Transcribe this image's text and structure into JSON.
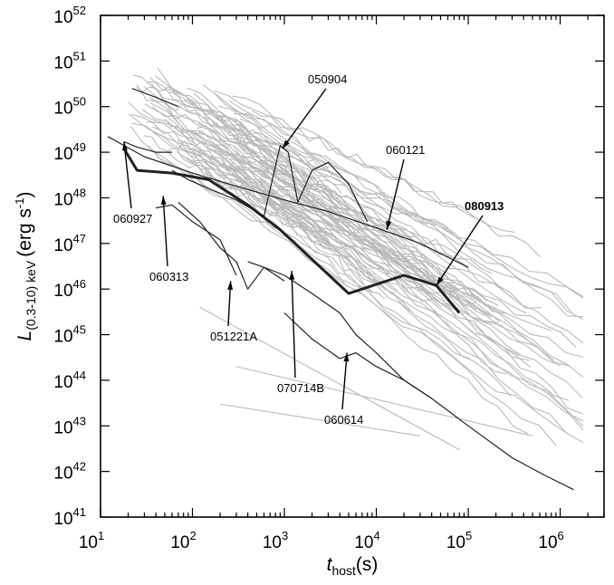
{
  "chart_data": {
    "type": "line",
    "xlabel": {
      "main": "t",
      "sub": "host",
      "unit": "(s)"
    },
    "ylabel": {
      "main": "L",
      "sub": "(0.3-10) keV",
      "unit_pre": "(erg s",
      "unit_exp": "-1",
      "unit_post": ")"
    },
    "xscale": "log",
    "yscale": "log",
    "xlim": [
      10,
      3000000
    ],
    "ylim": [
      1e+41,
      1e+52
    ],
    "x_ticks": [
      {
        "base": "10",
        "exp": "1"
      },
      {
        "base": "10",
        "exp": "2"
      },
      {
        "base": "10",
        "exp": "3"
      },
      {
        "base": "10",
        "exp": "4"
      },
      {
        "base": "10",
        "exp": "5"
      },
      {
        "base": "10",
        "exp": "6"
      }
    ],
    "y_ticks": [
      {
        "base": "10",
        "exp": "41"
      },
      {
        "base": "10",
        "exp": "42"
      },
      {
        "base": "10",
        "exp": "43"
      },
      {
        "base": "10",
        "exp": "44"
      },
      {
        "base": "10",
        "exp": "45"
      },
      {
        "base": "10",
        "exp": "46"
      },
      {
        "base": "10",
        "exp": "47"
      },
      {
        "base": "10",
        "exp": "48"
      },
      {
        "base": "10",
        "exp": "49"
      },
      {
        "base": "10",
        "exp": "50"
      },
      {
        "base": "10",
        "exp": "51"
      },
      {
        "base": "10",
        "exp": "52"
      }
    ],
    "colors": {
      "background_sample": "#bbbbbb",
      "highlight": "#222222",
      "grb_080913": "#222222"
    },
    "highlighted": [
      {
        "name": "080913",
        "bold": true,
        "x": [
          18,
          25,
          60,
          150,
          400,
          900,
          5000,
          20000,
          45000,
          80000
        ],
        "y": [
          1.2e+49,
          4e+48,
          3.5e+48,
          2.5e+48,
          7e+47,
          2e+47,
          8e+45,
          2e+46,
          1.2e+46,
          3e+45
        ]
      },
      {
        "name": "050904",
        "bold": false,
        "x": [
          60,
          90,
          150,
          300,
          600,
          900,
          1100,
          1400,
          2000,
          3000,
          5000,
          8000
        ],
        "y": [
          4e+48,
          2.5e+48,
          1.6e+48,
          9e+47,
          4e+47,
          1.4e+49,
          1e+49,
          8e+47,
          4e+48,
          6e+48,
          2e+48,
          3e+47
        ]
      },
      {
        "name": "060121",
        "bold": false,
        "x": [
          12,
          30,
          100,
          300,
          1000,
          3000,
          10000,
          30000,
          100000
        ],
        "y": [
          2.2e+49,
          8e+48,
          3.5e+48,
          1.8e+48,
          9e+47,
          5e+47,
          2.2e+47,
          1e+47,
          3e+46
        ]
      },
      {
        "name": "060927",
        "bold": false,
        "x": [
          18,
          25,
          40,
          60
        ],
        "y": [
          1.7e+49,
          1.3e+49,
          1e+49,
          1e+49
        ]
      },
      {
        "name": "060313",
        "bold": false,
        "x": [
          40,
          60,
          100,
          200,
          300
        ],
        "y": [
          6e+47,
          7e+47,
          3e+47,
          1.2e+47,
          2e+46
        ]
      },
      {
        "name": "051221A",
        "bold": false,
        "x": [
          70,
          120,
          200,
          300,
          400,
          600,
          1000
        ],
        "y": [
          8e+47,
          3e+47,
          8e+46,
          4e+46,
          1e+46,
          3e+46,
          1.5e+46
        ]
      },
      {
        "name": "070714B",
        "bold": false,
        "x": [
          400,
          600,
          1000,
          2000,
          4000,
          6000,
          10000,
          20000,
          40000
        ],
        "y": [
          4e+46,
          3e+46,
          2e+46,
          8e+45,
          3e+45,
          1e+45,
          4e+44,
          1e+44,
          4e+43
        ]
      },
      {
        "name": "060614",
        "bold": false,
        "x": [
          1000,
          2000,
          4000,
          6000,
          10000,
          20000,
          40000,
          100000,
          300000,
          700000,
          1400000
        ],
        "y": [
          3e+45,
          8e+44,
          3e+44,
          4e+44,
          2e+44,
          1e+44,
          4e+43,
          1e+43,
          2e+42,
          8e+41,
          4e+41
        ]
      },
      {
        "name": "",
        "bold": false,
        "x": [
          22,
          40,
          70
        ],
        "y": [
          2.5e+50,
          1.6e+50,
          1e+50
        ]
      }
    ],
    "annotations": [
      {
        "label": "050904",
        "bold": false,
        "at": [
          950,
          1.2e+49
        ]
      },
      {
        "label": "060121",
        "bold": false,
        "at": [
          13000,
          2e+47
        ]
      },
      {
        "label": "080913",
        "bold": true,
        "at": [
          45000,
          1.2e+46
        ]
      },
      {
        "label": "060927",
        "bold": false,
        "at": [
          18,
          1.7e+49
        ]
      },
      {
        "label": "060313",
        "bold": false,
        "at": [
          48,
          1.1e+48
        ]
      },
      {
        "label": "051221A",
        "bold": false,
        "at": [
          260,
          1.5e+46
        ]
      },
      {
        "label": "070714B",
        "bold": false,
        "at": [
          1200,
          2.5e+46
        ]
      },
      {
        "label": "060614",
        "bold": false,
        "at": [
          4800,
          4e+44
        ]
      }
    ]
  }
}
